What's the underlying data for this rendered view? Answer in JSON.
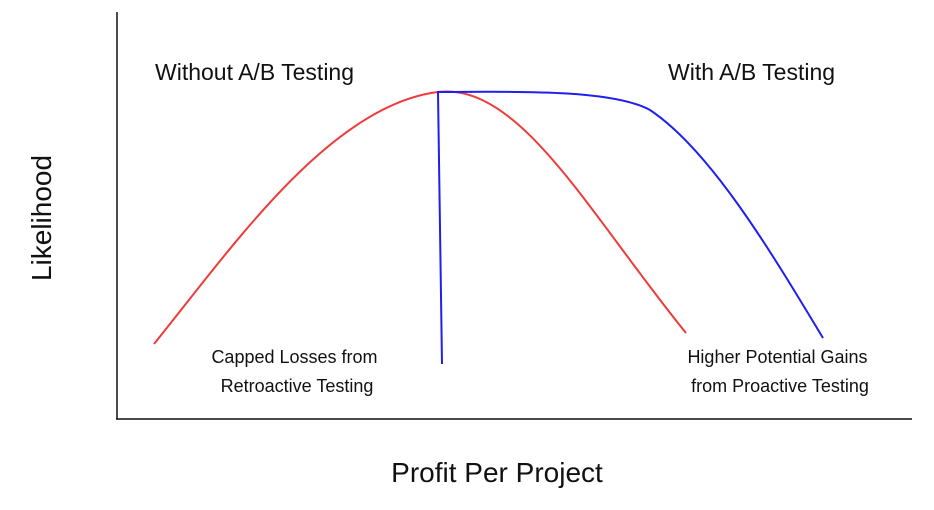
{
  "diagram": {
    "axes": {
      "x_label": "Profit Per Project",
      "y_label": "Likelihood"
    },
    "regions": {
      "left_title": "Without A/B Testing",
      "right_title": "With A/B Testing"
    },
    "annotations": {
      "left": [
        "Capped Losses from",
        "Retroactive Testing"
      ],
      "right": [
        "Higher Potential Gains",
        "from Proactive Testing"
      ]
    },
    "curves": [
      {
        "id": "without-ab-testing",
        "color": "#ee3b3b"
      },
      {
        "id": "with-ab-testing",
        "color": "#1f1fee"
      }
    ],
    "axis_color": "#111111"
  }
}
